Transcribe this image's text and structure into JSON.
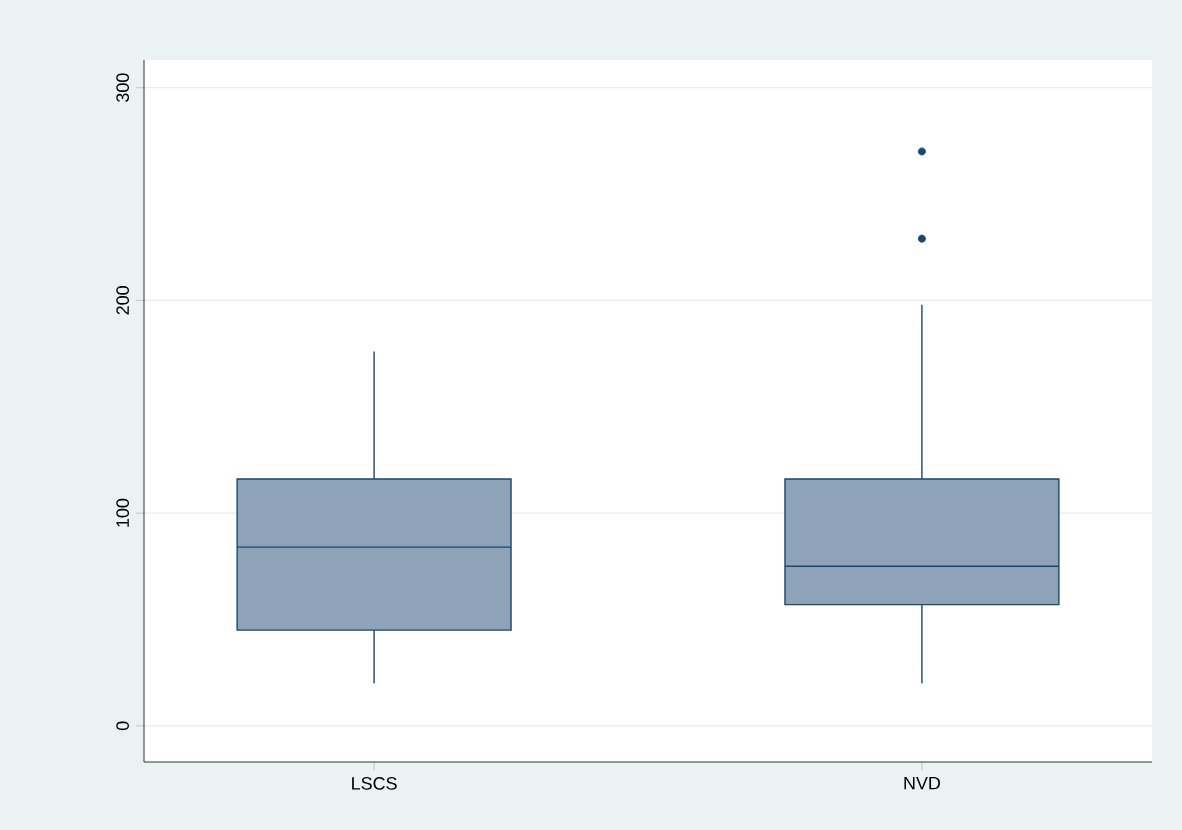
{
  "chart_data": {
    "type": "box",
    "categories": [
      "LSCS",
      "NVD"
    ],
    "boxes": [
      {
        "low": 20,
        "q1": 45,
        "median": 84,
        "q3": 116,
        "high": 176
      },
      {
        "low": 20,
        "q1": 57,
        "median": 75,
        "q3": 116,
        "high": 198,
        "outliers": [
          229,
          270
        ]
      }
    ],
    "color": "#8ea2b8",
    "ylim": [
      -17,
      313
    ],
    "yticks": [
      0,
      100,
      200,
      300
    ],
    "grid": "y"
  }
}
